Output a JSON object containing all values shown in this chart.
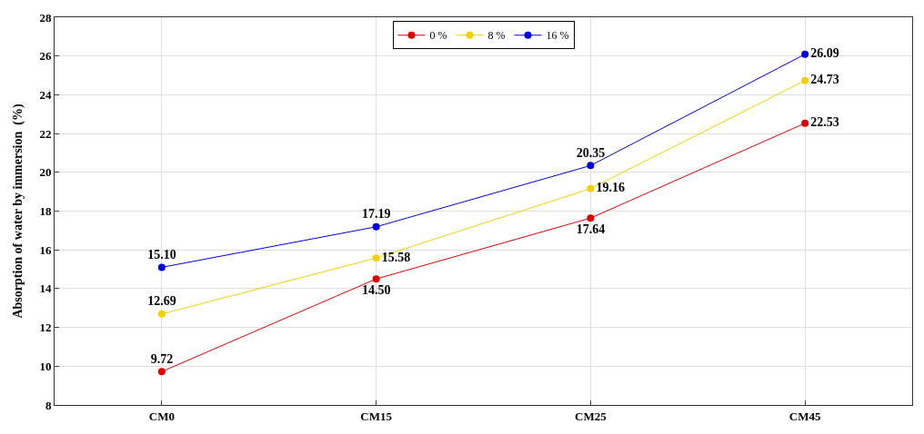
{
  "chart_data": {
    "type": "line",
    "ylabel": "Absorption of water by immersion  (%)",
    "categories": [
      "CM0",
      "CM15",
      "CM25",
      "CM45"
    ],
    "series": [
      {
        "name": "0 %",
        "color": "#e00000",
        "values": [
          9.72,
          14.5,
          17.64,
          22.53
        ],
        "value_labels": [
          "9.72",
          "14.50",
          "17.64",
          "22.53"
        ]
      },
      {
        "name": "8 %",
        "color": "#f5d000",
        "values": [
          12.69,
          15.58,
          19.16,
          24.73
        ],
        "value_labels": [
          "12.69",
          "15.58",
          "19.16",
          "24.73"
        ]
      },
      {
        "name": "16 %",
        "color": "#0000e0",
        "values": [
          15.1,
          17.19,
          20.35,
          26.09
        ],
        "value_labels": [
          "15.10",
          "17.19",
          "20.35",
          "26.09"
        ]
      }
    ],
    "ylim": [
      8,
      28
    ],
    "yticks": [
      8,
      10,
      12,
      14,
      16,
      18,
      20,
      22,
      24,
      26,
      28
    ],
    "grid": true,
    "legend": "top",
    "marker": "circle",
    "line_style": "solid"
  }
}
